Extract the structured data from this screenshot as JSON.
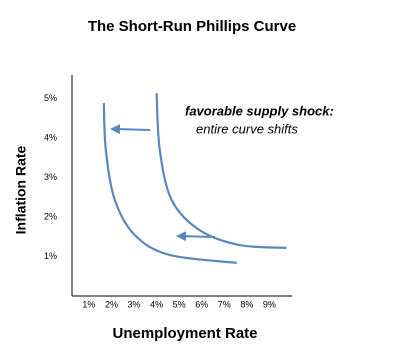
{
  "chart_data": {
    "type": "line",
    "title": "The Short-Run Phillips Curve",
    "x_label": "Unemployment Rate",
    "y_label": "Inflation Rate",
    "annotations": [
      "favorable supply shock:",
      "entire curve shifts"
    ],
    "series": [
      {
        "color": "#5b87c0",
        "x": [
          1.66,
          1.75,
          2.15,
          3.04,
          4.58,
          7.55
        ],
        "values": [
          4.89,
          3.7,
          2.43,
          1.54,
          1.04,
          0.84
        ]
      },
      {
        "color": "#5b87c0",
        "x": [
          4.0,
          4.14,
          4.67,
          5.9,
          7.68,
          9.76
        ],
        "values": [
          5.14,
          3.7,
          2.43,
          1.67,
          1.29,
          1.22
        ]
      }
    ],
    "xlim": [
      0.25,
      10
    ],
    "ylim": [
      0,
      5.6
    ],
    "xticks": [
      {
        "value": 1,
        "label": "1%"
      },
      {
        "value": 2,
        "label": "2%"
      },
      {
        "value": 3,
        "label": "3%"
      },
      {
        "value": 4,
        "label": "4%"
      },
      {
        "value": 5,
        "label": "5%"
      },
      {
        "value": 6,
        "label": "6%"
      },
      {
        "value": 7,
        "label": "7%"
      },
      {
        "value": 8,
        "label": "8%"
      },
      {
        "value": 9,
        "label": "9%"
      }
    ],
    "yticks": [
      {
        "value": 1,
        "label": "1%"
      },
      {
        "value": 2,
        "label": "2%"
      },
      {
        "value": 3,
        "label": "3%"
      },
      {
        "value": 4,
        "label": "4%"
      },
      {
        "value": 5,
        "label": "5%"
      }
    ],
    "grid": false
  }
}
